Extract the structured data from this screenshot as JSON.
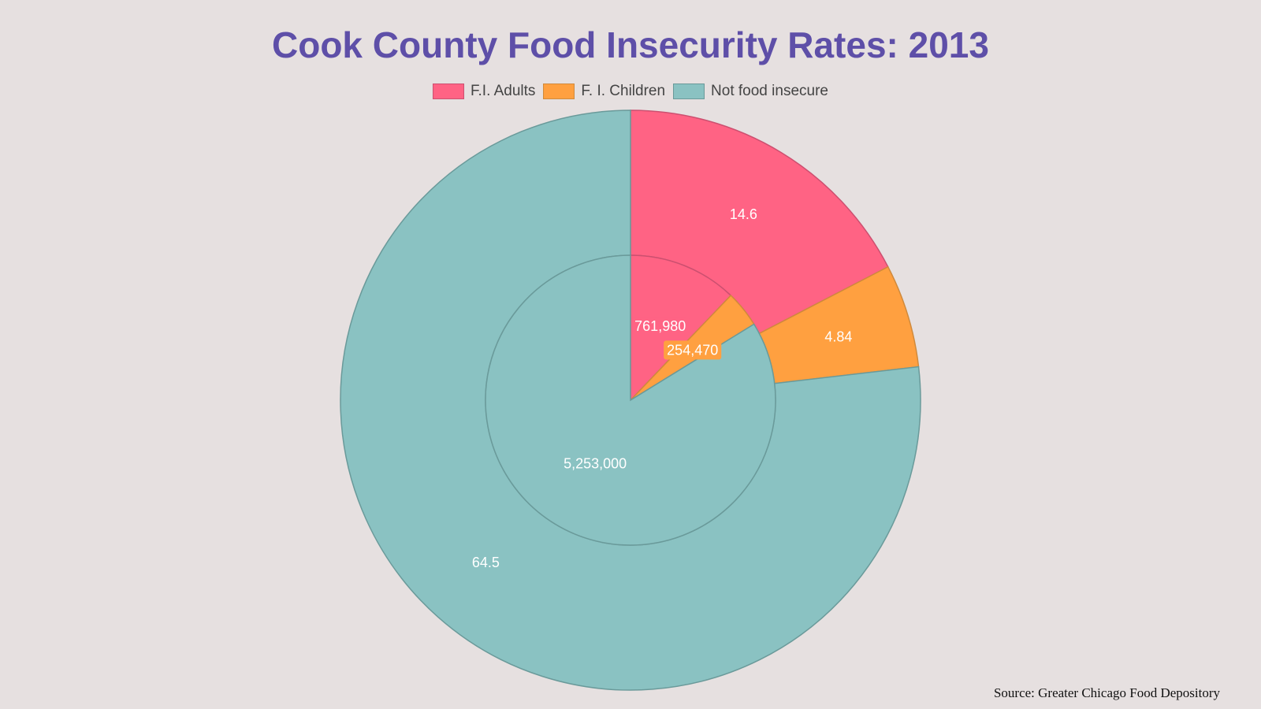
{
  "chart_data": {
    "type": "pie",
    "title": "Cook County Food Insecurity Rates: 2013",
    "source": "Source: Greater Chicago Food Depository",
    "legend": [
      "F.I. Adults",
      "F. I. Children",
      "Not food insecure"
    ],
    "colors": {
      "adults": "#ff6384",
      "children": "#ffa040",
      "not_insecure": "#8ac2c2"
    },
    "border_colors": {
      "adults": "#cc5070",
      "children": "#d08a3c",
      "not_insecure": "#6a9a9a"
    },
    "rings": [
      {
        "name": "outer",
        "labels": [
          "F.I. Adults",
          "F. I. Children",
          "Not food insecure"
        ],
        "values": [
          14.6,
          4.84,
          64.5
        ],
        "value_labels": [
          "14.6",
          "4.84",
          "64.5"
        ]
      },
      {
        "name": "inner",
        "labels": [
          "F.I. Adults",
          "F. I. Children",
          "Not food insecure"
        ],
        "values": [
          761980,
          254470,
          5253000
        ],
        "value_labels": [
          "761,980",
          "254,470",
          "5,253,000"
        ]
      }
    ]
  }
}
